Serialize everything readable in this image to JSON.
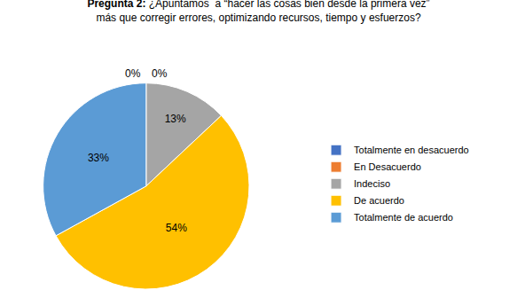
{
  "chart_data": {
    "type": "pie",
    "title": "Pregunta 2: ¿Apuntamos  a “hacer las cosas bien desde la primera vez”\nmás que corregir errores, optimizando recursos, tiempo y esfuerzos?",
    "categories": [
      "Totalmente en desacuerdo",
      "En Desacuerdo",
      "Indeciso",
      "De acuerdo",
      "Totalmente de acuerdo"
    ],
    "values": [
      0,
      0,
      13,
      54,
      33
    ],
    "value_labels": [
      "0%",
      "0%",
      "13%",
      "54%",
      "33%"
    ],
    "colors": [
      "#4472C4",
      "#ED7D31",
      "#A5A5A5",
      "#FFC000",
      "#5B9BD5"
    ],
    "data_labels": true,
    "legend": "right"
  }
}
